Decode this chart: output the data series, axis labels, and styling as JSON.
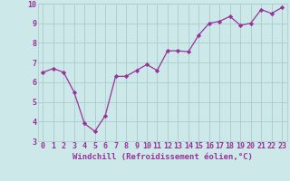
{
  "x": [
    0,
    1,
    2,
    3,
    4,
    5,
    6,
    7,
    8,
    9,
    10,
    11,
    12,
    13,
    14,
    15,
    16,
    17,
    18,
    19,
    20,
    21,
    22,
    23
  ],
  "y": [
    6.5,
    6.7,
    6.5,
    5.5,
    3.9,
    3.5,
    4.3,
    6.3,
    6.3,
    6.6,
    6.9,
    6.6,
    7.6,
    7.6,
    7.55,
    8.4,
    9.0,
    9.1,
    9.35,
    8.9,
    9.0,
    9.7,
    9.5,
    9.8
  ],
  "line_color": "#993399",
  "marker": "D",
  "marker_size": 2.2,
  "xlabel": "Windchill (Refroidissement éolien,°C)",
  "ylim": [
    3,
    10
  ],
  "xlim_min": -0.5,
  "xlim_max": 23.5,
  "xticks": [
    0,
    1,
    2,
    3,
    4,
    5,
    6,
    7,
    8,
    9,
    10,
    11,
    12,
    13,
    14,
    15,
    16,
    17,
    18,
    19,
    20,
    21,
    22,
    23
  ],
  "yticks": [
    3,
    4,
    5,
    6,
    7,
    8,
    9,
    10
  ],
  "bg_color": "#cce8e8",
  "grid_color": "#aacccc",
  "label_color": "#993399",
  "xlabel_fontsize": 6.5,
  "tick_fontsize": 6.0,
  "linewidth": 0.9
}
